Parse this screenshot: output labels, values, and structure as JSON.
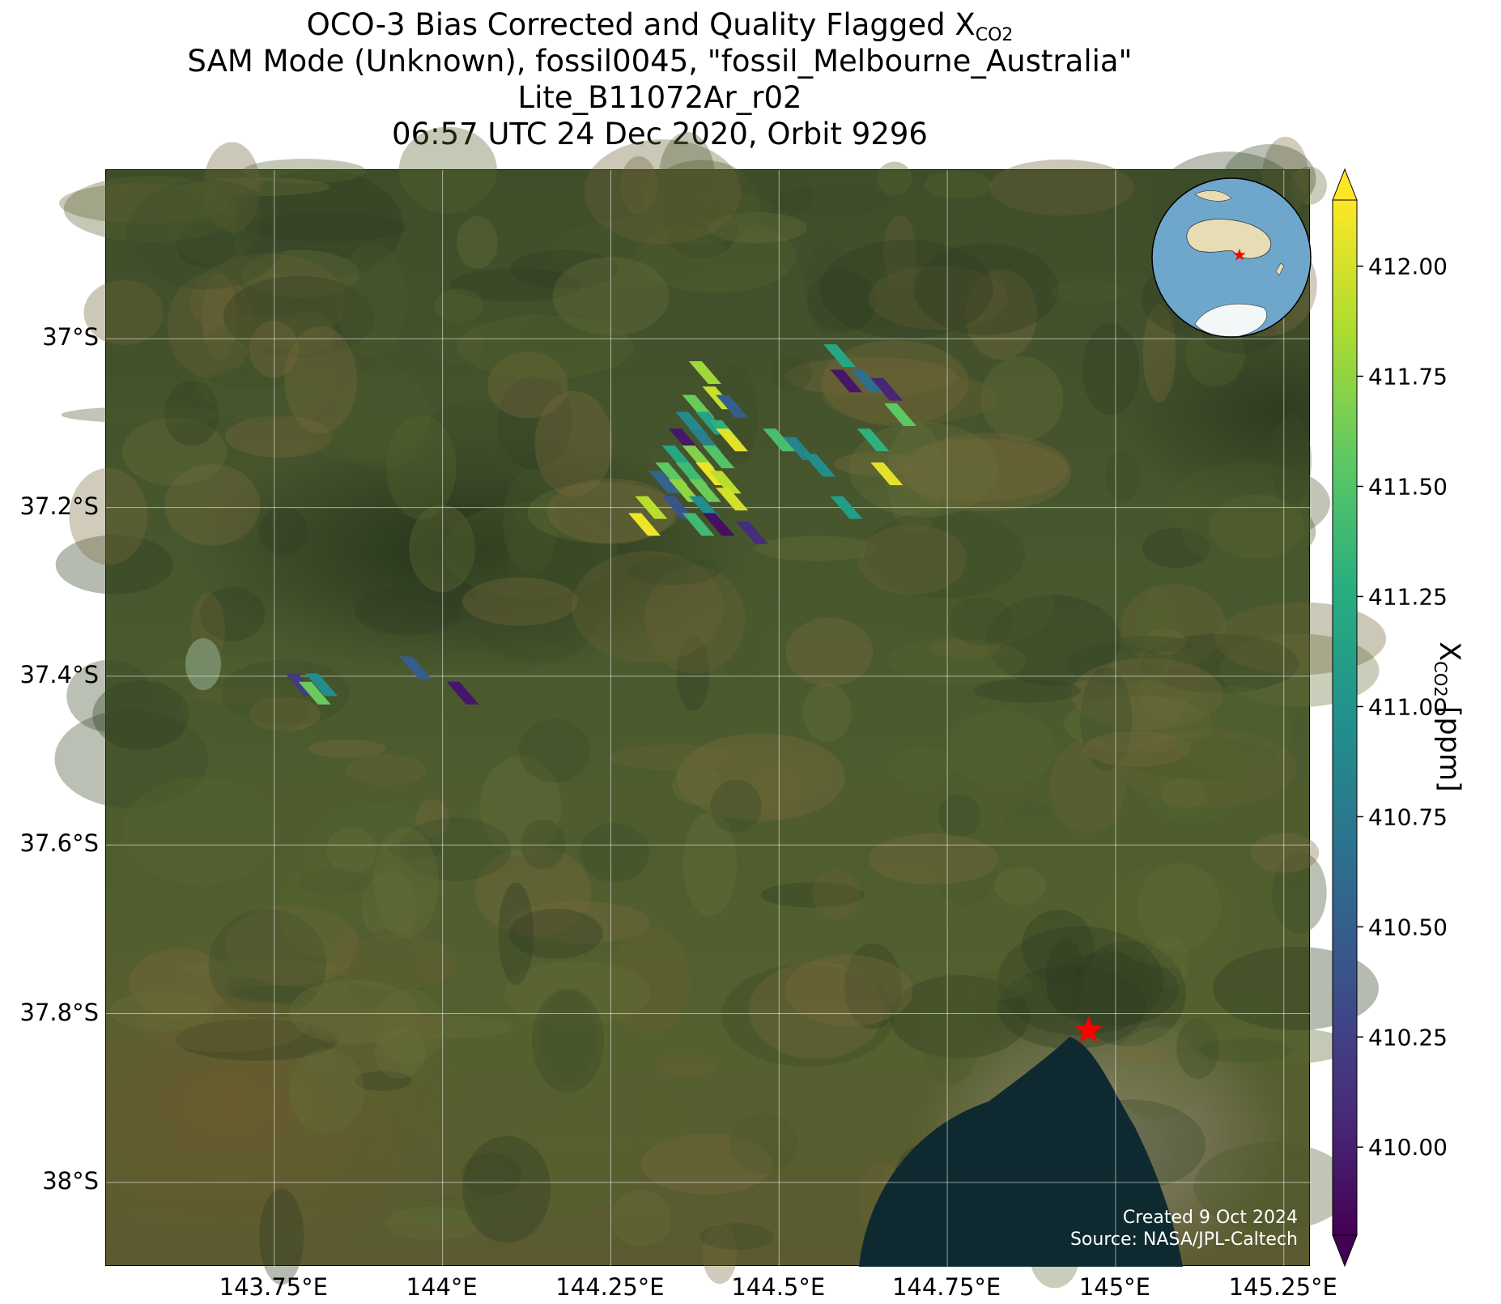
{
  "title": {
    "line1_prefix": "OCO-3 Bias Corrected and Quality Flagged X",
    "line1_sub": "CO2",
    "line2": "SAM Mode (Unknown), fossil0045, \"fossil_Melbourne_Australia\"",
    "line3": "Lite_B11072Ar_r02",
    "line4": "06:57 UTC 24 Dec 2020, Orbit 9296"
  },
  "map": {
    "lon_range": [
      143.5,
      145.29
    ],
    "lat_range": [
      -38.1,
      -36.8
    ],
    "lat_ticks": [
      {
        "value": -37.0,
        "label": "37°S"
      },
      {
        "value": -37.2,
        "label": "37.2°S"
      },
      {
        "value": -37.4,
        "label": "37.4°S"
      },
      {
        "value": -37.6,
        "label": "37.6°S"
      },
      {
        "value": -37.8,
        "label": "37.8°S"
      },
      {
        "value": -38.0,
        "label": "38°S"
      }
    ],
    "lon_ticks": [
      {
        "value": 143.75,
        "label": "143.75°E"
      },
      {
        "value": 144.0,
        "label": "144°E"
      },
      {
        "value": 144.25,
        "label": "144.25°E"
      },
      {
        "value": 144.5,
        "label": "144.5°E"
      },
      {
        "value": 144.75,
        "label": "144.75°E"
      },
      {
        "value": 145.0,
        "label": "145°E"
      },
      {
        "value": 145.25,
        "label": "145.25°E"
      }
    ],
    "grid": true,
    "basemap": "satellite imagery",
    "target_marker": {
      "lon": 144.96,
      "lat": -37.82,
      "color": "#ff0000",
      "shape": "star"
    },
    "inset_globe": {
      "position": "top-right",
      "ocean_color": "#6fa6cc",
      "land_color": "#e8dcb5",
      "marker_color": "#ff0000"
    },
    "footprints": [
      {
        "lon": 144.39,
        "lat": -37.04,
        "xco2": 411.8
      },
      {
        "lon": 144.41,
        "lat": -37.07,
        "xco2": 411.95
      },
      {
        "lon": 144.43,
        "lat": -37.08,
        "xco2": 410.5
      },
      {
        "lon": 144.38,
        "lat": -37.08,
        "xco2": 411.6
      },
      {
        "lon": 144.4,
        "lat": -37.1,
        "xco2": 411.15
      },
      {
        "lon": 144.37,
        "lat": -37.1,
        "xco2": 410.9
      },
      {
        "lon": 144.42,
        "lat": -37.11,
        "xco2": 411.3
      },
      {
        "lon": 144.36,
        "lat": -37.12,
        "xco2": 409.95
      },
      {
        "lon": 144.39,
        "lat": -37.12,
        "xco2": 410.8
      },
      {
        "lon": 144.43,
        "lat": -37.12,
        "xco2": 412.05
      },
      {
        "lon": 144.35,
        "lat": -37.14,
        "xco2": 411.2
      },
      {
        "lon": 144.38,
        "lat": -37.14,
        "xco2": 411.7
      },
      {
        "lon": 144.41,
        "lat": -37.14,
        "xco2": 411.5
      },
      {
        "lon": 144.34,
        "lat": -37.16,
        "xco2": 411.55
      },
      {
        "lon": 144.37,
        "lat": -37.16,
        "xco2": 411.4
      },
      {
        "lon": 144.4,
        "lat": -37.16,
        "xco2": 412.1
      },
      {
        "lon": 144.42,
        "lat": -37.17,
        "xco2": 411.9
      },
      {
        "lon": 144.33,
        "lat": -37.17,
        "xco2": 410.55
      },
      {
        "lon": 144.36,
        "lat": -37.18,
        "xco2": 411.75
      },
      {
        "lon": 144.39,
        "lat": -37.18,
        "xco2": 411.6
      },
      {
        "lon": 144.43,
        "lat": -37.19,
        "xco2": 412.0
      },
      {
        "lon": 144.31,
        "lat": -37.2,
        "xco2": 411.9
      },
      {
        "lon": 144.35,
        "lat": -37.2,
        "xco2": 410.4
      },
      {
        "lon": 144.39,
        "lat": -37.2,
        "xco2": 410.95
      },
      {
        "lon": 144.3,
        "lat": -37.22,
        "xco2": 412.1
      },
      {
        "lon": 144.38,
        "lat": -37.22,
        "xco2": 411.4
      },
      {
        "lon": 144.41,
        "lat": -37.22,
        "xco2": 409.9
      },
      {
        "lon": 144.46,
        "lat": -37.23,
        "xco2": 410.1
      },
      {
        "lon": 144.59,
        "lat": -37.02,
        "xco2": 411.2
      },
      {
        "lon": 144.6,
        "lat": -37.05,
        "xco2": 409.95
      },
      {
        "lon": 144.63,
        "lat": -37.05,
        "xco2": 410.65
      },
      {
        "lon": 144.66,
        "lat": -37.06,
        "xco2": 410.05
      },
      {
        "lon": 144.68,
        "lat": -37.09,
        "xco2": 411.55
      },
      {
        "lon": 144.5,
        "lat": -37.12,
        "xco2": 411.45
      },
      {
        "lon": 144.53,
        "lat": -37.13,
        "xco2": 410.85
      },
      {
        "lon": 144.56,
        "lat": -37.15,
        "xco2": 410.95
      },
      {
        "lon": 144.64,
        "lat": -37.12,
        "xco2": 411.3
      },
      {
        "lon": 144.66,
        "lat": -37.16,
        "xco2": 412.05
      },
      {
        "lon": 144.6,
        "lat": -37.2,
        "xco2": 411.1
      },
      {
        "lon": 143.79,
        "lat": -37.41,
        "xco2": 410.2
      },
      {
        "lon": 143.82,
        "lat": -37.41,
        "xco2": 410.95
      },
      {
        "lon": 143.81,
        "lat": -37.42,
        "xco2": 411.6
      },
      {
        "lon": 143.96,
        "lat": -37.39,
        "xco2": 410.5
      },
      {
        "lon": 144.03,
        "lat": -37.42,
        "xco2": 409.95
      }
    ]
  },
  "colorbar": {
    "vmin": 409.8,
    "vmax": 412.15,
    "ticks": [
      "410.00",
      "410.25",
      "410.50",
      "410.75",
      "411.00",
      "411.25",
      "411.50",
      "411.75",
      "412.00"
    ],
    "label_prefix": "X",
    "label_sub": "CO2",
    "label_suffix": " [ppm]",
    "colormap": "viridis",
    "extend": "both"
  },
  "watermark": {
    "line1": "Created 9 Oct 2024",
    "line2": "Source: NASA/JPL-Caltech"
  }
}
